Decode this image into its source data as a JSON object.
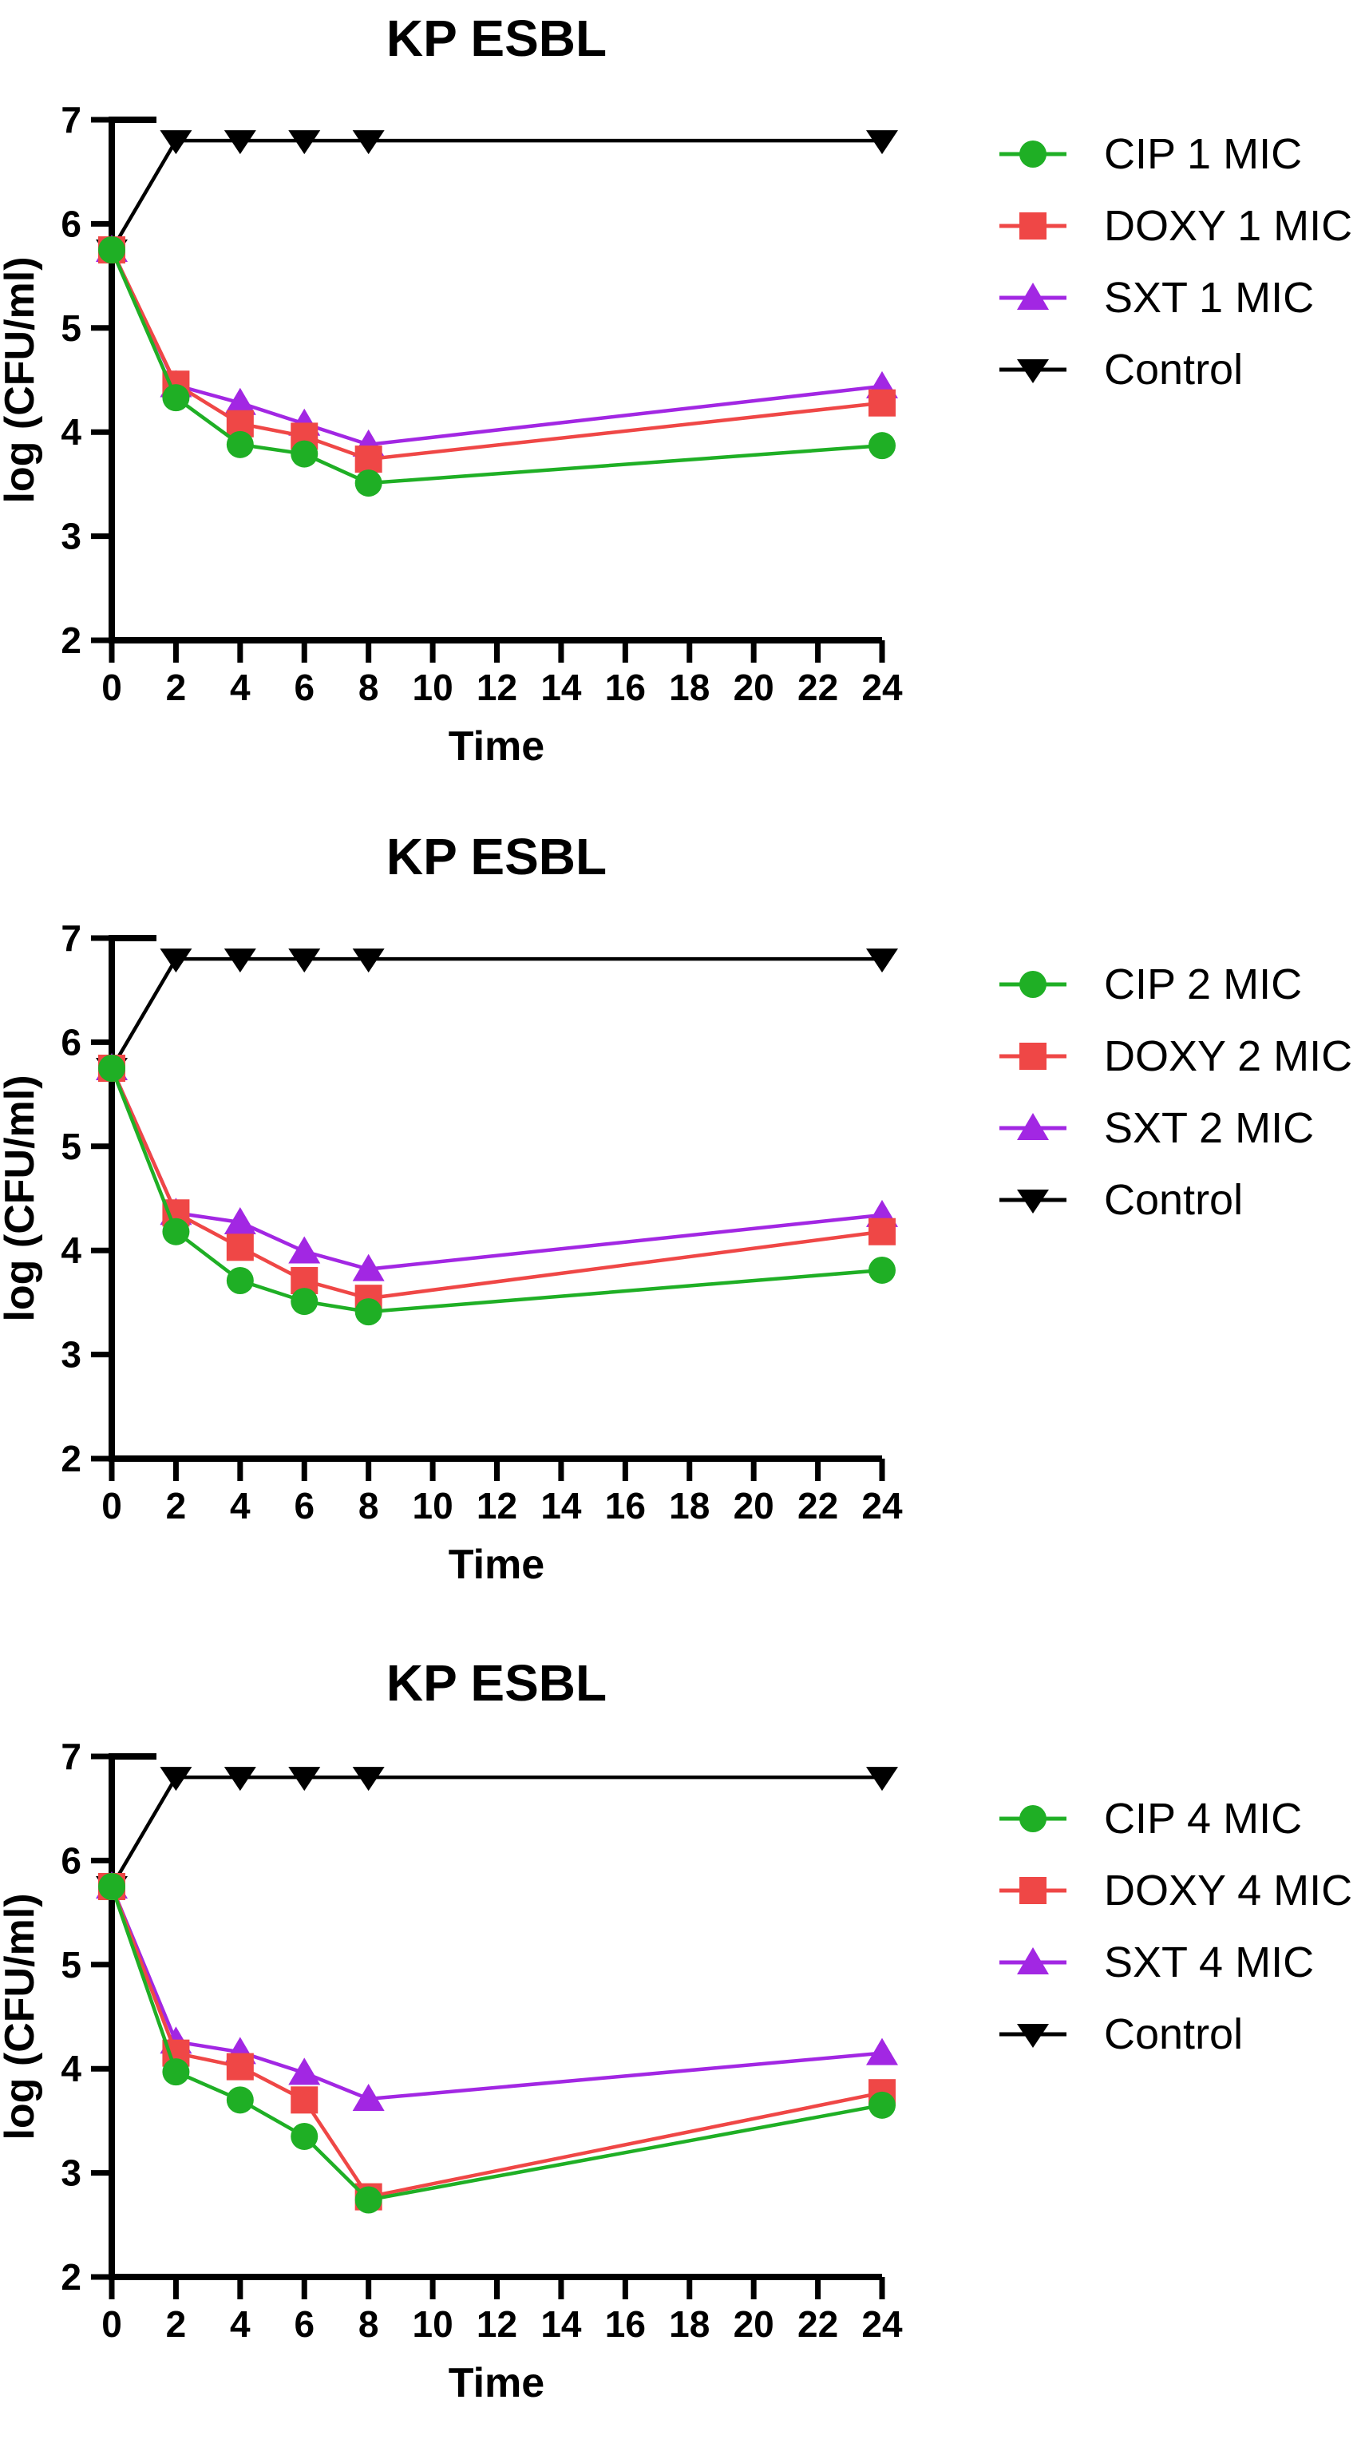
{
  "chart_data": [
    {
      "type": "line",
      "title": "KP ESBL",
      "xlabel": "Time",
      "ylabel": "log (CFU/ml)",
      "xlim": [
        0,
        24
      ],
      "ylim": [
        2,
        7
      ],
      "x_ticks": [
        0,
        2,
        4,
        6,
        8,
        10,
        12,
        14,
        16,
        18,
        20,
        22,
        24
      ],
      "y_ticks": [
        2,
        3,
        4,
        5,
        6,
        7
      ],
      "grid": false,
      "legend_position": "right",
      "x": [
        0,
        2,
        4,
        6,
        8,
        24
      ],
      "series": [
        {
          "name": "CIP 1 MIC",
          "color": "#1FAF25",
          "marker": "circle",
          "values": [
            5.75,
            4.33,
            3.88,
            3.79,
            3.51,
            3.87
          ]
        },
        {
          "name": "DOXY 1 MIC",
          "color": "#EF4746",
          "marker": "square",
          "values": [
            5.75,
            4.46,
            4.08,
            3.96,
            3.74,
            4.28
          ]
        },
        {
          "name": "SXT 1 MIC",
          "color": "#A227E3",
          "marker": "triangle-up",
          "values": [
            5.75,
            4.45,
            4.28,
            4.08,
            3.88,
            4.44
          ]
        },
        {
          "name": "Control",
          "color": "#000000",
          "marker": "triangle-down",
          "values": [
            5.75,
            6.8,
            6.8,
            6.8,
            6.8,
            6.8
          ]
        }
      ]
    },
    {
      "type": "line",
      "title": "KP ESBL",
      "xlabel": "Time",
      "ylabel": "log (CFU/ml)",
      "xlim": [
        0,
        24
      ],
      "ylim": [
        2,
        7
      ],
      "x_ticks": [
        0,
        2,
        4,
        6,
        8,
        10,
        12,
        14,
        16,
        18,
        20,
        22,
        24
      ],
      "y_ticks": [
        2,
        3,
        4,
        5,
        6,
        7
      ],
      "grid": false,
      "legend_position": "right",
      "x": [
        0,
        2,
        4,
        6,
        8,
        24
      ],
      "series": [
        {
          "name": "CIP 2 MIC",
          "color": "#1FAF25",
          "marker": "circle",
          "values": [
            5.75,
            4.18,
            3.71,
            3.51,
            3.41,
            3.81
          ]
        },
        {
          "name": "DOXY 2 MIC",
          "color": "#EF4746",
          "marker": "square",
          "values": [
            5.75,
            4.36,
            4.03,
            3.71,
            3.54,
            4.18
          ]
        },
        {
          "name": "SXT 2 MIC",
          "color": "#A227E3",
          "marker": "triangle-up",
          "values": [
            5.75,
            4.36,
            4.27,
            3.99,
            3.82,
            4.34
          ]
        },
        {
          "name": "Control",
          "color": "#000000",
          "marker": "triangle-down",
          "values": [
            5.75,
            6.8,
            6.8,
            6.8,
            6.8,
            6.8
          ]
        }
      ]
    },
    {
      "type": "line",
      "title": "KP ESBL",
      "xlabel": "Time",
      "ylabel": "log (CFU/ml)",
      "xlim": [
        0,
        24
      ],
      "ylim": [
        2,
        7
      ],
      "x_ticks": [
        0,
        2,
        4,
        6,
        8,
        10,
        12,
        14,
        16,
        18,
        20,
        22,
        24
      ],
      "y_ticks": [
        2,
        3,
        4,
        5,
        6,
        7
      ],
      "grid": false,
      "legend_position": "right",
      "x": [
        0,
        2,
        4,
        6,
        8,
        24
      ],
      "series": [
        {
          "name": "CIP 4 MIC",
          "color": "#1FAF25",
          "marker": "circle",
          "values": [
            5.75,
            3.97,
            3.7,
            3.35,
            2.74,
            3.65
          ]
        },
        {
          "name": "DOXY 4 MIC",
          "color": "#EF4746",
          "marker": "square",
          "values": [
            5.75,
            4.15,
            4.02,
            3.7,
            2.77,
            3.77
          ]
        },
        {
          "name": "SXT 4 MIC",
          "color": "#A227E3",
          "marker": "triangle-up",
          "values": [
            5.75,
            4.26,
            4.16,
            3.96,
            3.71,
            4.15
          ]
        },
        {
          "name": "Control",
          "color": "#000000",
          "marker": "triangle-down",
          "values": [
            5.75,
            6.8,
            6.8,
            6.8,
            6.8,
            6.8
          ]
        }
      ]
    }
  ]
}
